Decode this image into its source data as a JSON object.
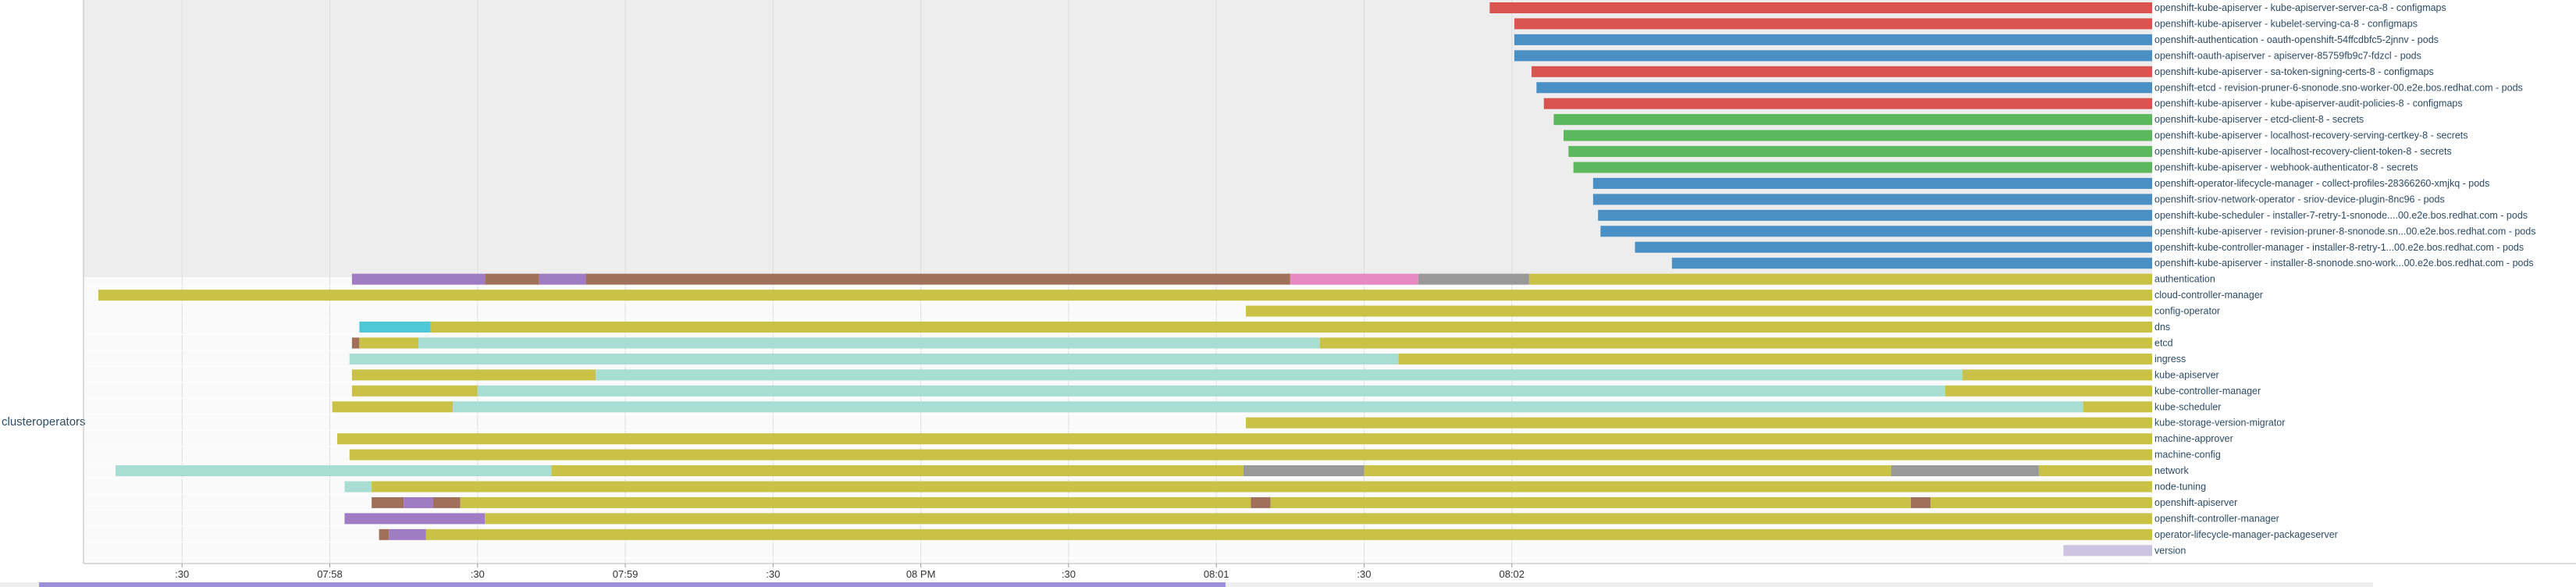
{
  "chart_data": {
    "type": "timeline",
    "x_axis_ticks": [
      ":30",
      "07:58",
      ":30",
      "07:59",
      ":30",
      "08 PM",
      ":30",
      "08:01",
      ":30",
      "08:02"
    ],
    "x_range_seconds": [
      0,
      420
    ],
    "groups": [
      {
        "name": "",
        "rows": [
          {
            "label": "openshift-kube-apiserver - kube-apiserver-server-ca-8 - configmaps",
            "segments": [
              {
                "start": 285.5,
                "end": 420,
                "color": "#d9534f"
              }
            ]
          },
          {
            "label": "openshift-kube-apiserver - kubelet-serving-ca-8 - configmaps",
            "segments": [
              {
                "start": 290.5,
                "end": 420,
                "color": "#d9534f"
              }
            ]
          },
          {
            "label": "openshift-authentication - oauth-openshift-54ffcdbfc5-2jnnv - pods",
            "segments": [
              {
                "start": 290.5,
                "end": 420,
                "color": "#4a90c4"
              }
            ]
          },
          {
            "label": "openshift-oauth-apiserver - apiserver-85759fb9c7-fdzcl - pods",
            "segments": [
              {
                "start": 290.5,
                "end": 420,
                "color": "#4a90c4"
              }
            ]
          },
          {
            "label": "openshift-kube-apiserver - sa-token-signing-certs-8 - configmaps",
            "segments": [
              {
                "start": 294,
                "end": 420,
                "color": "#d9534f"
              }
            ]
          },
          {
            "label": "openshift-etcd - revision-pruner-6-snonode.sno-worker-00.e2e.bos.redhat.com - pods",
            "segments": [
              {
                "start": 295,
                "end": 420,
                "color": "#4a90c4"
              }
            ]
          },
          {
            "label": "openshift-kube-apiserver - kube-apiserver-audit-policies-8 - configmaps",
            "segments": [
              {
                "start": 296.5,
                "end": 420,
                "color": "#d9534f"
              }
            ]
          },
          {
            "label": "openshift-kube-apiserver - etcd-client-8 - secrets",
            "segments": [
              {
                "start": 298.5,
                "end": 420,
                "color": "#5cb85c"
              }
            ]
          },
          {
            "label": "openshift-kube-apiserver - localhost-recovery-serving-certkey-8 - secrets",
            "segments": [
              {
                "start": 300.5,
                "end": 420,
                "color": "#5cb85c"
              }
            ]
          },
          {
            "label": "openshift-kube-apiserver - localhost-recovery-client-token-8 - secrets",
            "segments": [
              {
                "start": 301.5,
                "end": 420,
                "color": "#5cb85c"
              }
            ]
          },
          {
            "label": "openshift-kube-apiserver - webhook-authenticator-8 - secrets",
            "segments": [
              {
                "start": 302.5,
                "end": 420,
                "color": "#5cb85c"
              }
            ]
          },
          {
            "label": "openshift-operator-lifecycle-manager - collect-profiles-28366260-xmjkq - pods",
            "segments": [
              {
                "start": 306.5,
                "end": 420,
                "color": "#4a90c4"
              }
            ]
          },
          {
            "label": "openshift-sriov-network-operator - sriov-device-plugin-8nc96 - pods",
            "segments": [
              {
                "start": 306.5,
                "end": 420,
                "color": "#4a90c4"
              }
            ]
          },
          {
            "label": "openshift-kube-scheduler - installer-7-retry-1-snonode....00.e2e.bos.redhat.com - pods",
            "segments": [
              {
                "start": 307.5,
                "end": 420,
                "color": "#4a90c4"
              }
            ]
          },
          {
            "label": "openshift-kube-apiserver - revision-pruner-8-snonode.sn...00.e2e.bos.redhat.com - pods",
            "segments": [
              {
                "start": 308,
                "end": 420,
                "color": "#4a90c4"
              }
            ]
          },
          {
            "label": "openshift-kube-controller-manager - installer-8-retry-1...00.e2e.bos.redhat.com - pods",
            "segments": [
              {
                "start": 315,
                "end": 420,
                "color": "#4a90c4"
              }
            ]
          },
          {
            "label": "openshift-kube-apiserver - installer-8-snonode.sno-work...00.e2e.bos.redhat.com - pods",
            "segments": [
              {
                "start": 322.5,
                "end": 420,
                "color": "#4a90c4"
              }
            ]
          }
        ]
      },
      {
        "name": "clusteroperators",
        "rows": [
          {
            "label": "authentication",
            "segments": [
              {
                "start": 54.5,
                "end": 81.5,
                "color": "#a07cc5"
              },
              {
                "start": 81.5,
                "end": 92.5,
                "color": "#a0705a"
              },
              {
                "start": 92.5,
                "end": 102,
                "color": "#a07cc5"
              },
              {
                "start": 102,
                "end": 245,
                "color": "#a0705a"
              },
              {
                "start": 245,
                "end": 271,
                "color": "#e78ac3"
              },
              {
                "start": 271,
                "end": 293.5,
                "color": "#999999"
              },
              {
                "start": 293.5,
                "end": 420,
                "color": "#c9c246"
              }
            ]
          },
          {
            "label": "cloud-controller-manager",
            "segments": [
              {
                "start": 3,
                "end": 420,
                "color": "#c9c246"
              }
            ]
          },
          {
            "label": "config-operator",
            "segments": [
              {
                "start": 236,
                "end": 420,
                "color": "#c9c246"
              }
            ]
          },
          {
            "label": "dns",
            "segments": [
              {
                "start": 56,
                "end": 70.5,
                "color": "#4fc7d4"
              },
              {
                "start": 70.5,
                "end": 420,
                "color": "#c9c246"
              }
            ]
          },
          {
            "label": "etcd",
            "segments": [
              {
                "start": 54.5,
                "end": 56,
                "color": "#a0705a"
              },
              {
                "start": 56,
                "end": 68,
                "color": "#c9c246"
              },
              {
                "start": 68,
                "end": 251,
                "color": "#a8ddd4"
              },
              {
                "start": 251,
                "end": 420,
                "color": "#c9c246"
              }
            ]
          },
          {
            "label": "ingress",
            "segments": [
              {
                "start": 54,
                "end": 267,
                "color": "#a8ddd4"
              },
              {
                "start": 267,
                "end": 420,
                "color": "#c9c246"
              }
            ]
          },
          {
            "label": "kube-apiserver",
            "segments": [
              {
                "start": 54.5,
                "end": 104,
                "color": "#c9c246"
              },
              {
                "start": 104,
                "end": 381.5,
                "color": "#a8ddd4"
              },
              {
                "start": 381.5,
                "end": 420,
                "color": "#c9c246"
              }
            ]
          },
          {
            "label": "kube-controller-manager",
            "segments": [
              {
                "start": 54.5,
                "end": 80,
                "color": "#c9c246"
              },
              {
                "start": 80,
                "end": 378,
                "color": "#a8ddd4"
              },
              {
                "start": 378,
                "end": 420,
                "color": "#c9c246"
              }
            ]
          },
          {
            "label": "kube-scheduler",
            "segments": [
              {
                "start": 50.5,
                "end": 75,
                "color": "#c9c246"
              },
              {
                "start": 75,
                "end": 406,
                "color": "#a8ddd4"
              },
              {
                "start": 406,
                "end": 420,
                "color": "#c9c246"
              }
            ]
          },
          {
            "label": "kube-storage-version-migrator",
            "segments": [
              {
                "start": 236,
                "end": 420,
                "color": "#c9c246"
              }
            ]
          },
          {
            "label": "machine-approver",
            "segments": [
              {
                "start": 51.5,
                "end": 420,
                "color": "#c9c246"
              }
            ]
          },
          {
            "label": "machine-config",
            "segments": [
              {
                "start": 54,
                "end": 420,
                "color": "#c9c246"
              }
            ]
          },
          {
            "label": "network",
            "segments": [
              {
                "start": 6.5,
                "end": 95,
                "color": "#a8ddd4"
              },
              {
                "start": 95,
                "end": 235.5,
                "color": "#c9c246"
              },
              {
                "start": 235.5,
                "end": 260,
                "color": "#999999"
              },
              {
                "start": 260,
                "end": 367,
                "color": "#c9c246"
              },
              {
                "start": 367,
                "end": 397,
                "color": "#999999"
              },
              {
                "start": 397,
                "end": 420,
                "color": "#c9c246"
              }
            ]
          },
          {
            "label": "node-tuning",
            "segments": [
              {
                "start": 53,
                "end": 58.5,
                "color": "#a8ddd4"
              },
              {
                "start": 58.5,
                "end": 420,
                "color": "#c9c246"
              }
            ]
          },
          {
            "label": "openshift-apiserver",
            "segments": [
              {
                "start": 58.5,
                "end": 65,
                "color": "#a0705a"
              },
              {
                "start": 65,
                "end": 71,
                "color": "#a07cc5"
              },
              {
                "start": 71,
                "end": 76.5,
                "color": "#a0705a"
              },
              {
                "start": 76.5,
                "end": 237,
                "color": "#c9c246"
              },
              {
                "start": 237,
                "end": 241,
                "color": "#a0705a"
              },
              {
                "start": 241,
                "end": 371,
                "color": "#c9c246"
              },
              {
                "start": 371,
                "end": 375,
                "color": "#a0705a"
              },
              {
                "start": 375,
                "end": 420,
                "color": "#c9c246"
              }
            ]
          },
          {
            "label": "openshift-controller-manager",
            "segments": [
              {
                "start": 53,
                "end": 81.5,
                "color": "#a07cc5"
              },
              {
                "start": 81.5,
                "end": 420,
                "color": "#c9c246"
              }
            ]
          },
          {
            "label": "operator-lifecycle-manager-packageserver",
            "segments": [
              {
                "start": 60,
                "end": 62,
                "color": "#a0705a"
              },
              {
                "start": 62,
                "end": 69.5,
                "color": "#a07cc5"
              },
              {
                "start": 69.5,
                "end": 420,
                "color": "#c9c246"
              }
            ]
          },
          {
            "label": "version",
            "segments": [
              {
                "start": 402,
                "end": 420,
                "color": "#cbc3df"
              }
            ]
          }
        ]
      }
    ]
  }
}
